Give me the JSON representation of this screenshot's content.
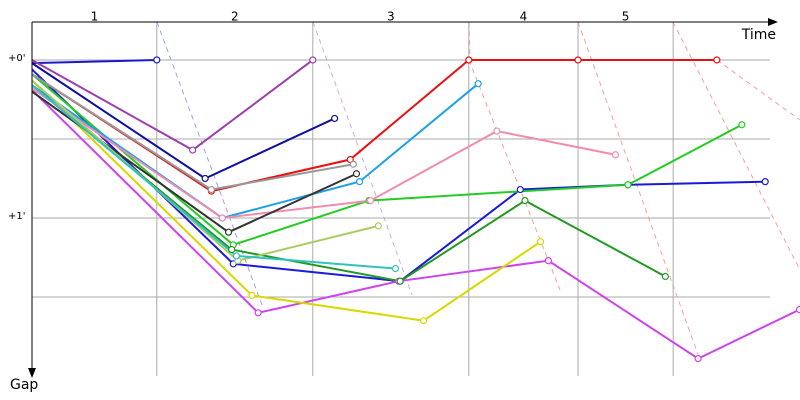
{
  "chart_data": {
    "type": "line",
    "x_label": "Time",
    "y_label": "Gap",
    "laps": [
      {
        "label": "1",
        "start": 0,
        "end": 0.8
      },
      {
        "label": "2",
        "start": 0.8,
        "end": 1.8
      },
      {
        "label": "3",
        "start": 1.8,
        "end": 2.8
      },
      {
        "label": "4",
        "start": 2.8,
        "end": 3.5
      },
      {
        "label": "5",
        "start": 3.5,
        "end": 4.11
      }
    ],
    "xlim": [
      0,
      4.923
    ],
    "ylim": [
      -0.253,
      2.057
    ],
    "yticks": [
      {
        "value": 0,
        "label": "+0'"
      },
      {
        "value": 1,
        "label": "+1'"
      }
    ],
    "minor_yticks": [
      0.5,
      1.5
    ],
    "grid": true,
    "series": [
      {
        "color": "#1a1acc",
        "x": [
          0,
          0.8
        ],
        "values": [
          0.02,
          0
        ]
      },
      {
        "color": "#1a1ad8",
        "x": [
          0,
          1.29,
          2.36,
          3.13,
          3.82,
          4.7
        ],
        "values": [
          0.06,
          1.29,
          1.4,
          0.82,
          0.79,
          0.77
        ]
      },
      {
        "color": "#e81010",
        "x": [
          0,
          1.15,
          2.04,
          2.8,
          3.5,
          4.39
        ],
        "values": [
          0.09,
          0.83,
          0.63,
          0,
          0,
          0
        ]
      },
      {
        "color": "#9b3fb0",
        "x": [
          0,
          1.03,
          1.8
        ],
        "values": [
          0,
          0.57,
          0
        ]
      },
      {
        "color": "#cc44ee",
        "x": [
          0,
          1.45,
          2.35,
          3.31,
          4.27,
          4.92
        ],
        "values": [
          0.19,
          1.6,
          1.4,
          1.27,
          1.89,
          1.58
        ]
      },
      {
        "color": "#d8d800",
        "x": [
          0,
          1.41,
          2.51,
          3.26
        ],
        "values": [
          0.13,
          1.49,
          1.65,
          1.15
        ]
      },
      {
        "color": "#22cc22",
        "x": [
          0,
          1.29,
          2.16,
          3.82,
          4.55
        ],
        "values": [
          0.09,
          1.17,
          0.89,
          0.79,
          0.41
        ]
      },
      {
        "color": "#229922",
        "x": [
          0,
          1.28,
          2.36,
          3.16,
          4.06
        ],
        "values": [
          0.16,
          1.2,
          1.4,
          0.89,
          1.37
        ]
      },
      {
        "color": "#1ea0e8",
        "x": [
          0,
          1.22,
          2.1,
          2.86
        ],
        "values": [
          0.16,
          1,
          0.77,
          0.15
        ]
      },
      {
        "color": "#f08cb0",
        "x": [
          0,
          1.22,
          2.17,
          2.98,
          3.74
        ],
        "values": [
          0.18,
          1,
          0.89,
          0.45,
          0.6
        ]
      },
      {
        "color": "#1010a0",
        "x": [
          0,
          1.11,
          1.94
        ],
        "values": [
          0.02,
          0.75,
          0.37
        ]
      },
      {
        "color": "#999999",
        "x": [
          0,
          1.15,
          2.06
        ],
        "values": [
          0.09,
          0.82,
          0.66
        ]
      },
      {
        "color": "#333333",
        "x": [
          0,
          1.26,
          2.08
        ],
        "values": [
          0.2,
          1.09,
          0.72
        ]
      },
      {
        "color": "#aacc66",
        "x": [
          0,
          1.32,
          2.22
        ],
        "values": [
          0.13,
          1.27,
          1.05
        ]
      },
      {
        "color": "#33c0c0",
        "x": [
          0,
          1.31,
          2.33
        ],
        "values": [
          0.16,
          1.24,
          1.32
        ]
      }
    ]
  }
}
